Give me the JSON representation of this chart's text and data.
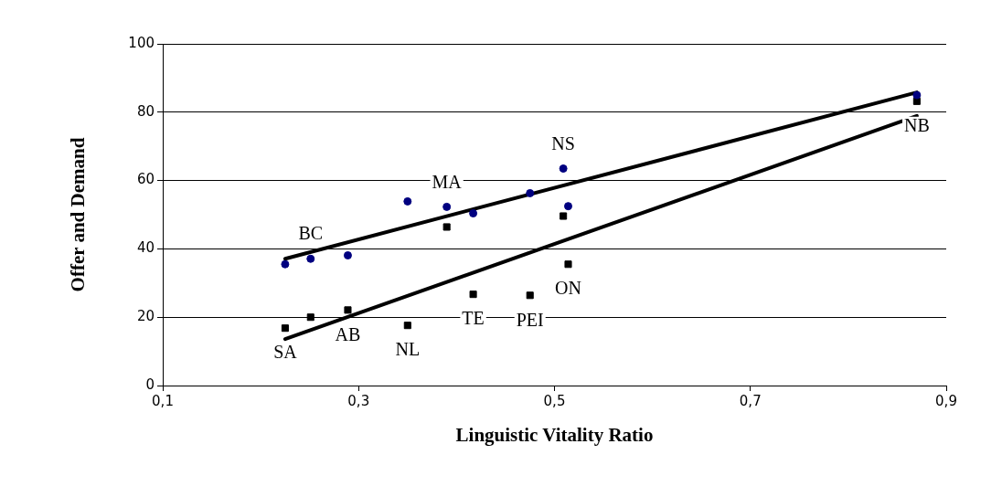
{
  "chart_data": {
    "type": "scatter",
    "xlabel": "Linguistic Vitality Ratio",
    "ylabel": "Offer and Demand",
    "xlim": [
      0.1,
      0.9
    ],
    "xticks": [
      {
        "value": 0.1,
        "label": "0,1"
      },
      {
        "value": 0.3,
        "label": "0,3"
      },
      {
        "value": 0.5,
        "label": "0,5"
      },
      {
        "value": 0.7,
        "label": "0,7"
      },
      {
        "value": 0.9,
        "label": "0,9"
      }
    ],
    "ylim": [
      0,
      100
    ],
    "yticks": [
      0,
      20,
      40,
      60,
      80,
      100
    ],
    "grid": "y",
    "legend": false,
    "series": [
      {
        "type": "scatter",
        "marker": "circle",
        "color": "#000080",
        "x": [
          0.225,
          0.251,
          0.289,
          0.35,
          0.39,
          0.417,
          0.475,
          0.509,
          0.514,
          0.87
        ],
        "values": [
          35.5,
          37.1,
          38.1,
          53.9,
          52.3,
          50.4,
          56.3,
          63.5,
          52.5,
          85
        ]
      },
      {
        "type": "scatter",
        "marker": "square",
        "color": "#000000",
        "x": [
          0.225,
          0.251,
          0.289,
          0.35,
          0.39,
          0.417,
          0.475,
          0.509,
          0.514,
          0.87
        ],
        "values": [
          16.8,
          20.0,
          22.1,
          17.6,
          46.4,
          26.7,
          26.4,
          49.6,
          35.5,
          83.2
        ]
      },
      {
        "type": "line",
        "marker": "none",
        "color": "#000000",
        "x": [
          0.225,
          0.87
        ],
        "values": [
          37.1,
          85.8
        ]
      },
      {
        "type": "line",
        "marker": "none",
        "color": "#000000",
        "x": [
          0.225,
          0.87
        ],
        "values": [
          13.6,
          78.9
        ]
      }
    ],
    "annotations": [
      {
        "text": "BC",
        "x": 0.251,
        "y": 37.1
      },
      {
        "text": "SA",
        "x": 0.225,
        "y": 16.8
      },
      {
        "text": "AB",
        "x": 0.289,
        "y": 22.1
      },
      {
        "text": "NL",
        "x": 0.35,
        "y": 17.6
      },
      {
        "text": "MA",
        "x": 0.39,
        "y": 52.3
      },
      {
        "text": "TE",
        "x": 0.417,
        "y": 26.7
      },
      {
        "text": "PEI",
        "x": 0.475,
        "y": 26.4
      },
      {
        "text": "NS",
        "x": 0.509,
        "y": 63.5
      },
      {
        "text": "ON",
        "x": 0.514,
        "y": 35.5
      },
      {
        "text": "NB",
        "x": 0.87,
        "y": 83.2
      }
    ]
  }
}
